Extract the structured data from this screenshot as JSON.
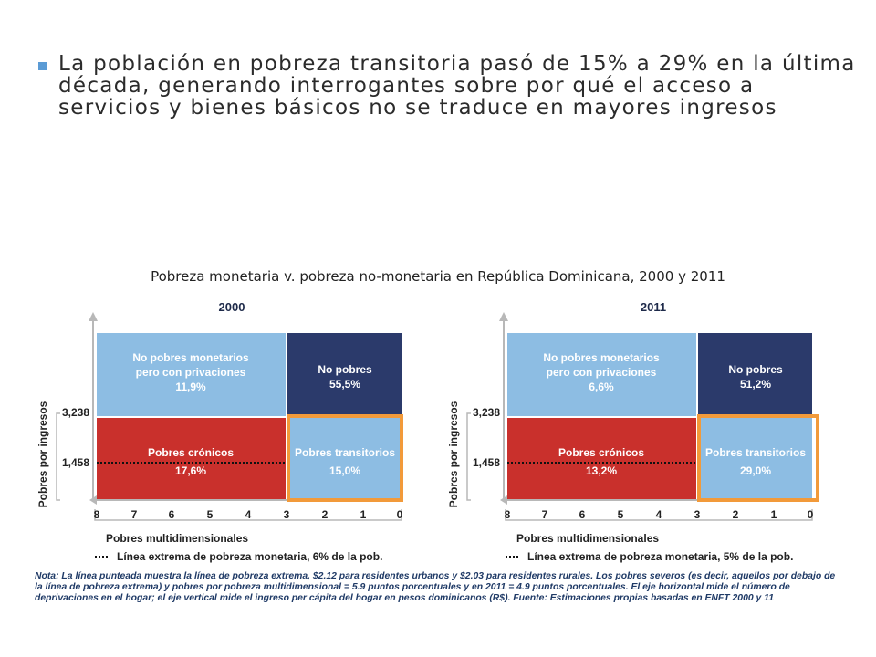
{
  "headline": "La población en pobreza transitoria pasó de 15% a 29% en la última década, generando interrogantes sobre por qué el acceso a servicios y bienes básicos no se traduce en mayores ingresos",
  "figure_title": "Pobreza monetaria v. pobreza no-monetaria en República Dominicana, 2000 y 2011",
  "colors": {
    "light_blue": "#8dbde3",
    "navy": "#2b3a6b",
    "red": "#c9302c",
    "orange": "#f29a3a"
  },
  "panels": [
    {
      "year": "2000",
      "y_axis_label": "Pobres por ingresos",
      "y_ticks": [
        "3,238",
        "1,458"
      ],
      "x_ticks": [
        "8",
        "7",
        "6",
        "5",
        "4",
        "3",
        "2",
        "1",
        "0"
      ],
      "x_axis_label": "Pobres multidimensionales",
      "legend": "Línea extrema de pobreza monetaria, 6% de la pob.",
      "cells": {
        "top_left": {
          "label1": "No pobres monetarios",
          "label2": "pero con privaciones",
          "value": "11,9%"
        },
        "top_right": {
          "label1": "No pobres",
          "value": "55,5%"
        },
        "bottom_left": {
          "label1": "Pobres crónicos",
          "value": "17,6%"
        },
        "bottom_right": {
          "label1": "Pobres transitorios",
          "value": "15,0%"
        }
      }
    },
    {
      "year": "2011",
      "y_axis_label": "Pobres por ingresos",
      "y_ticks": [
        "3,238",
        "1,458"
      ],
      "x_ticks": [
        "8",
        "7",
        "6",
        "5",
        "4",
        "3",
        "2",
        "1",
        "0"
      ],
      "x_axis_label": "Pobres multidimensionales",
      "legend": "Línea extrema de pobreza monetaria, 5% de la pob.",
      "cells": {
        "top_left": {
          "label1": "No pobres monetarios",
          "label2": "pero con privaciones",
          "value": "6,6%"
        },
        "top_right": {
          "label1": "No pobres",
          "value": "51,2%"
        },
        "bottom_left": {
          "label1": "Pobres crónicos",
          "value": "13,2%"
        },
        "bottom_right": {
          "label1": "Pobres transitorios",
          "value": "29,0%"
        }
      }
    }
  ],
  "note": "Nota: La línea punteada muestra la línea de pobreza extrema, $2.12 para residentes urbanos y $2.03 para residentes rurales. Los pobres severos (es decir, aquellos por debajo de la línea de pobreza extrema) y pobres por pobreza multidimensional = 5.9 puntos porcentuales y en 2011 = 4.9 puntos porcentuales. El eje horizontal mide el número de deprivaciones en el hogar; el eje vertical mide el ingreso per cápita del hogar en pesos dominicanos (R$). Fuente: Estimaciones propias basadas en ENFT 2000 y 11"
}
